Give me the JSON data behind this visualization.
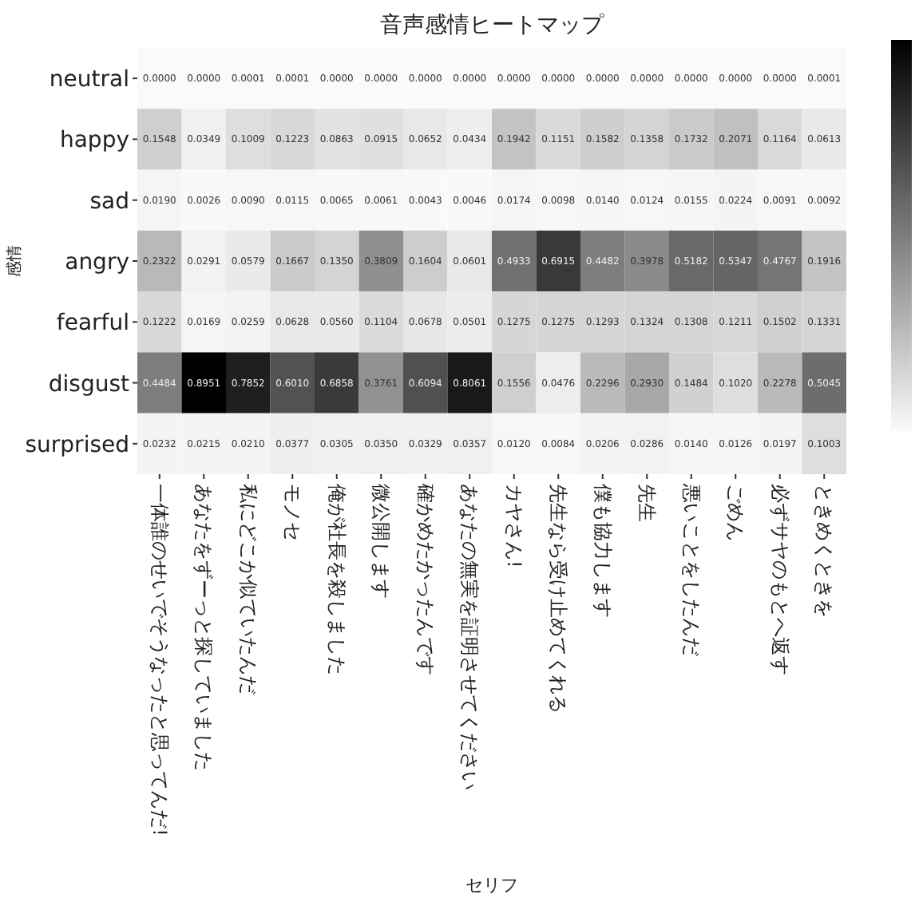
{
  "chart_data": {
    "type": "heatmap",
    "title": "音声感情ヒートマップ",
    "xlabel": "セリフ",
    "ylabel": "感情",
    "categories": [
      "一体誰のせいでそうなったと思ってんだ!",
      "あなたをずーっと探していました",
      "私にどこか似ていたんだ",
      "モノセ",
      "俺が社長を殺しました",
      "微公開します",
      "確かめたかったんです",
      "あなたの無実を証明させてください",
      "カヤさん!",
      "先生なら受け止めてくれる",
      "僕も協力します",
      "先生",
      "悪いことをしたんだ",
      "ごめん",
      "必ずサヤのもとへ返す",
      "ときめくときを"
    ],
    "y_categories": [
      "neutral",
      "happy",
      "sad",
      "angry",
      "fearful",
      "disgust",
      "surprised"
    ],
    "cells": [
      [
        0.0,
        0.0,
        0.0001,
        0.0001,
        0.0,
        0.0,
        0.0,
        0.0,
        0.0,
        0.0,
        0.0,
        0.0,
        0.0,
        0.0,
        0.0,
        0.0001
      ],
      [
        0.1548,
        0.0349,
        0.1009,
        0.1223,
        0.0863,
        0.0915,
        0.0652,
        0.0434,
        0.1942,
        0.1151,
        0.1582,
        0.1358,
        0.1732,
        0.2071,
        0.1164,
        0.0613
      ],
      [
        0.019,
        0.0026,
        0.009,
        0.0115,
        0.0065,
        0.0061,
        0.0043,
        0.0046,
        0.0174,
        0.0098,
        0.014,
        0.0124,
        0.0155,
        0.0224,
        0.0091,
        0.0092
      ],
      [
        0.2322,
        0.0291,
        0.0579,
        0.1667,
        0.135,
        0.3809,
        0.1604,
        0.0601,
        0.4933,
        0.6915,
        0.4482,
        0.3978,
        0.5182,
        0.5347,
        0.4767,
        0.1916
      ],
      [
        0.1222,
        0.0169,
        0.0259,
        0.0628,
        0.056,
        0.1104,
        0.0678,
        0.0501,
        0.1275,
        0.1275,
        0.1293,
        0.1324,
        0.1308,
        0.1211,
        0.1502,
        0.1331
      ],
      [
        0.4484,
        0.8951,
        0.7852,
        0.601,
        0.6858,
        0.3761,
        0.6094,
        0.8061,
        0.1556,
        0.0476,
        0.2296,
        0.293,
        0.1484,
        0.102,
        0.2278,
        0.5045
      ],
      [
        0.0232,
        0.0215,
        0.021,
        0.0377,
        0.0305,
        0.035,
        0.0329,
        0.0357,
        0.012,
        0.0084,
        0.0206,
        0.0286,
        0.014,
        0.0126,
        0.0197,
        0.1003
      ]
    ],
    "cell_labels": [
      [
        "0.0000",
        "0.0000",
        "0.0001",
        "0.0001",
        "0.0000",
        "0.0000",
        "0.0000",
        "0.0000",
        "0.0000",
        "0.0000",
        "0.0000",
        "0.0000",
        "0.0000",
        "0.0000",
        "0.0000",
        "0.0001"
      ],
      [
        "0.1548",
        "0.0349",
        "0.1009",
        "0.1223",
        "0.0863",
        "0.0915",
        "0.0652",
        "0.0434",
        "0.1942",
        "0.1151",
        "0.1582",
        "0.1358",
        "0.1732",
        "0.2071",
        "0.1164",
        "0.0613"
      ],
      [
        "0.0190",
        "0.0026",
        "0.0090",
        "0.0115",
        "0.0065",
        "0.0061",
        "0.0043",
        "0.0046",
        "0.0174",
        "0.0098",
        "0.0140",
        "0.0124",
        "0.0155",
        "0.0224",
        "0.0091",
        "0.0092"
      ],
      [
        "0.2322",
        "0.0291",
        "0.0579",
        "0.1667",
        "0.1350",
        "0.3809",
        "0.1604",
        "0.0601",
        "0.4933",
        "0.6915",
        "0.4482",
        "0.3978",
        "0.5182",
        "0.5347",
        "0.4767",
        "0.1916"
      ],
      [
        "0.1222",
        "0.0169",
        "0.0259",
        "0.0628",
        "0.0560",
        "0.1104",
        "0.0678",
        "0.0501",
        "0.1275",
        "0.1275",
        "0.1293",
        "0.1324",
        "0.1308",
        "0.1211",
        "0.1502",
        "0.1331"
      ],
      [
        "0.4484",
        "0.8951",
        "0.7852",
        "0.6010",
        "0.6858",
        "0.3761",
        "0.6094",
        "0.8061",
        "0.1556",
        "0.0476",
        "0.2296",
        "0.2930",
        "0.1484",
        "0.1020",
        "0.2278",
        "0.5045"
      ],
      [
        "0.0232",
        "0.0215",
        "0.0210",
        "0.0377",
        "0.0305",
        "0.0350",
        "0.0329",
        "0.0357",
        "0.0120",
        "0.0084",
        "0.0206",
        "0.0286",
        "0.0140",
        "0.0126",
        "0.0197",
        "0.1003"
      ]
    ]
  }
}
